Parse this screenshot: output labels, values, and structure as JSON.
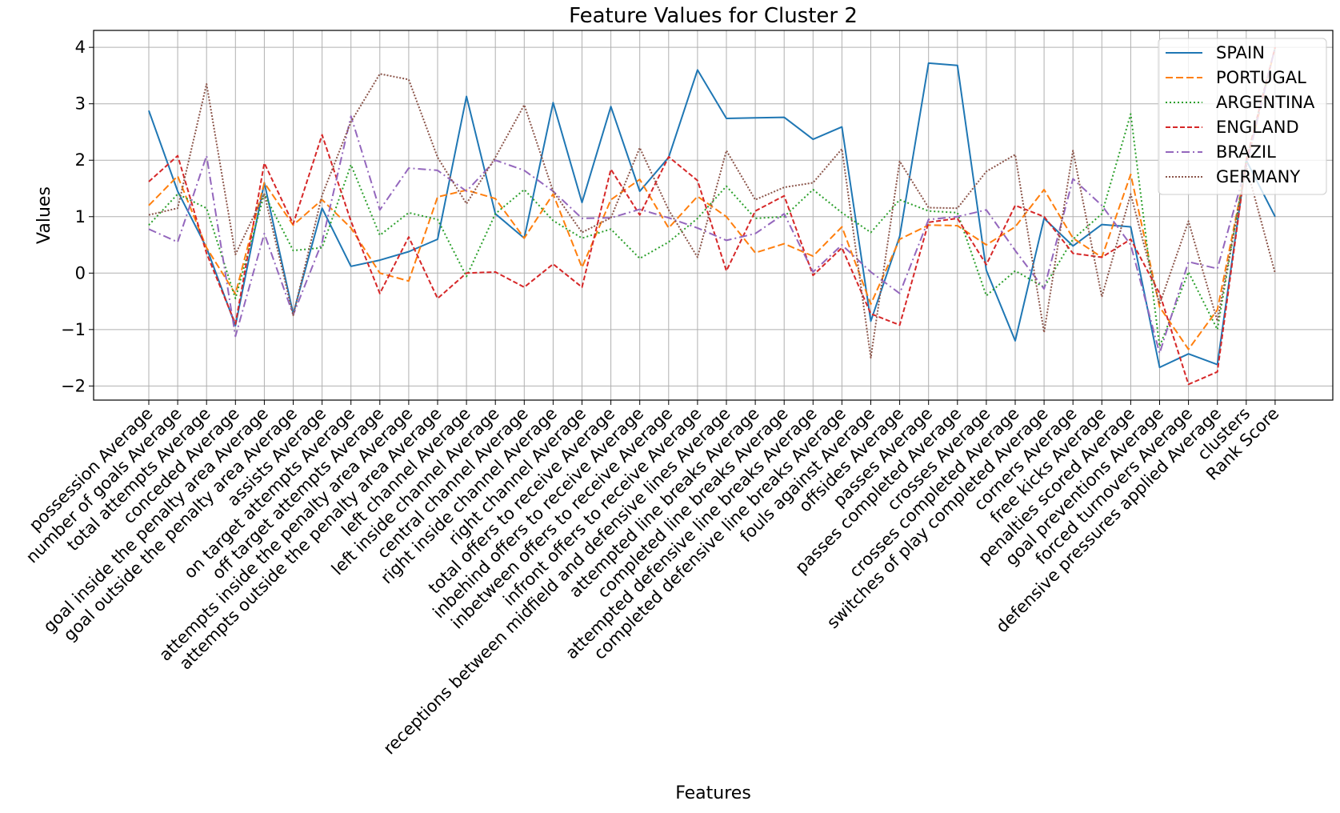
{
  "chart_data": {
    "type": "line",
    "title": "Feature Values for Cluster 2",
    "xlabel": "Features",
    "ylabel": "Values",
    "ylim": [
      -2.25,
      4.3
    ],
    "yticks": [
      -2,
      -1,
      0,
      1,
      2,
      3,
      4
    ],
    "ytick_labels": [
      "−2",
      "−1",
      "0",
      "1",
      "2",
      "3",
      "4"
    ],
    "grid": true,
    "legend_position": "upper right",
    "categories": [
      "possession Average",
      "number of goals Average",
      "total attempts Average",
      "conceded Average",
      "goal inside the penalty area Average",
      "goal outside the penalty area Average",
      "assists Average",
      "on target attempts Average",
      "off target attempts Average",
      "attempts inside the penalty area  Average",
      "attempts outside the penalty area  Average",
      "left channel Average",
      "left inside channel Average",
      "central channel Average",
      "right inside channel Average",
      "right channel Average",
      "total offers to receive Average",
      "inbehind offers to receive Average",
      "inbetween offers to receive Average",
      "infront offers to receive Average",
      "receptions between midfield and defensive lines Average",
      "attempted line breaks Average",
      "completed line breaks Average",
      "attempted defensive line breaks Average",
      "completed defensive line breaks Average",
      "fouls against Average",
      "offsides Average",
      "passes Average",
      "passes completed Average",
      "crosses Average",
      "crosses completed Average",
      "switches of play completed Average",
      "corners Average",
      "free kicks Average",
      "penalties scored Average",
      "goal preventions Average",
      "forced turnovers Average",
      "defensive pressures applied Average",
      "clusters",
      "Rank Score"
    ],
    "series": [
      {
        "name": "SPAIN",
        "color": "#1f77b4",
        "dash": "solid",
        "values": [
          2.88,
          1.45,
          0.45,
          -0.93,
          1.6,
          -0.72,
          1.15,
          0.12,
          0.23,
          0.38,
          0.6,
          3.13,
          1.05,
          0.62,
          3.02,
          1.25,
          2.95,
          1.45,
          2.05,
          3.6,
          2.74,
          2.75,
          2.76,
          2.37,
          2.59,
          -0.85,
          0.65,
          3.72,
          3.68,
          0.05,
          -1.2,
          0.97,
          0.48,
          0.86,
          0.82,
          -1.67,
          -1.43,
          -1.62,
          2.0,
          1.0
        ]
      },
      {
        "name": "PORTUGAL",
        "color": "#ff7f0e",
        "dash": "dashed",
        "values": [
          1.2,
          1.72,
          0.45,
          -0.37,
          1.6,
          0.85,
          1.3,
          0.8,
          0.0,
          -0.14,
          1.35,
          1.47,
          1.32,
          0.62,
          1.4,
          0.1,
          1.3,
          1.66,
          0.8,
          1.36,
          1.0,
          0.36,
          0.52,
          0.3,
          0.82,
          -0.55,
          0.6,
          0.85,
          0.84,
          0.5,
          0.82,
          1.48,
          0.62,
          0.28,
          1.75,
          -0.6,
          -1.35,
          -0.65,
          1.9,
          4.0
        ]
      },
      {
        "name": "ARGENTINA",
        "color": "#2ca02c",
        "dash": "dotted",
        "values": [
          0.85,
          1.4,
          1.15,
          -0.45,
          1.4,
          0.4,
          0.45,
          1.92,
          0.67,
          1.07,
          0.95,
          -0.06,
          1.05,
          1.48,
          0.93,
          0.62,
          0.78,
          0.26,
          0.55,
          0.97,
          1.54,
          0.97,
          1.0,
          1.48,
          1.07,
          0.72,
          1.3,
          1.1,
          1.07,
          -0.4,
          0.04,
          -0.25,
          0.6,
          1.05,
          2.82,
          -1.3,
          0.02,
          -1.0,
          2.0,
          4.0
        ]
      },
      {
        "name": "ENGLAND",
        "color": "#d62728",
        "dash": "dashdense",
        "values": [
          1.62,
          2.08,
          0.35,
          -0.9,
          1.95,
          0.87,
          2.45,
          0.92,
          -0.36,
          0.64,
          -0.45,
          0.0,
          0.02,
          -0.25,
          0.16,
          -0.25,
          1.84,
          1.03,
          2.06,
          1.64,
          0.04,
          1.1,
          1.37,
          -0.04,
          0.45,
          -0.72,
          -0.92,
          0.9,
          0.97,
          0.15,
          1.2,
          1.0,
          0.35,
          0.28,
          0.6,
          -0.36,
          -1.97,
          -1.75,
          2.0,
          4.0
        ]
      },
      {
        "name": "BRAZIL",
        "color": "#9467bd",
        "dash": "dashdot",
        "values": [
          0.78,
          0.55,
          2.08,
          -1.12,
          0.7,
          -0.74,
          0.55,
          2.78,
          1.12,
          1.86,
          1.82,
          1.45,
          2.0,
          1.82,
          1.45,
          0.97,
          0.98,
          1.13,
          0.98,
          0.8,
          0.58,
          0.7,
          1.05,
          0.02,
          0.5,
          0.02,
          -0.36,
          0.95,
          1.0,
          1.12,
          0.4,
          -0.28,
          1.67,
          1.2,
          0.5,
          -1.42,
          0.2,
          0.08,
          1.9,
          4.0
        ]
      },
      {
        "name": "GERMANY",
        "color": "#8c564b",
        "dash": "densedot",
        "values": [
          1.03,
          1.15,
          3.35,
          0.33,
          1.4,
          -0.75,
          1.38,
          2.68,
          3.53,
          3.43,
          2.05,
          1.23,
          2.05,
          2.98,
          1.45,
          0.72,
          0.98,
          2.22,
          1.12,
          0.28,
          2.17,
          1.3,
          1.52,
          1.6,
          2.2,
          -1.5,
          1.98,
          1.16,
          1.15,
          1.8,
          2.1,
          -1.05,
          2.17,
          -0.42,
          1.4,
          -0.55,
          0.92,
          -0.85,
          1.9,
          0.0
        ]
      }
    ]
  }
}
